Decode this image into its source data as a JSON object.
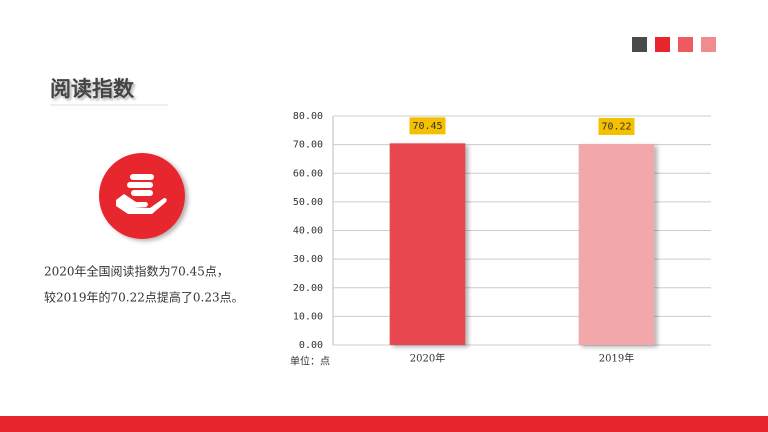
{
  "header": {
    "title": "阅读指数"
  },
  "description": [
    "2020年全国阅读指数为70.45点，",
    "较2019年的70.22点提高了0.23点。"
  ],
  "chart_data": {
    "type": "bar",
    "categories": [
      "2020年",
      "2019年"
    ],
    "values": [
      70.45,
      70.22
    ],
    "colors": [
      "#e8474f",
      "#f2a7aa"
    ],
    "label_color": "#f5c000",
    "y_label": "单位：点",
    "ylim": [
      0,
      80
    ],
    "yticks": [
      {
        "value": 0,
        "label": "0.00"
      },
      {
        "value": 10,
        "label": "10.00"
      },
      {
        "value": 20,
        "label": "20.00"
      },
      {
        "value": 30,
        "label": "30.00"
      },
      {
        "value": 40,
        "label": "40.00"
      },
      {
        "value": 50,
        "label": "50.00"
      },
      {
        "value": 60,
        "label": "60.00"
      },
      {
        "value": 70,
        "label": "70.00"
      },
      {
        "value": 80,
        "label": "80.00"
      }
    ],
    "grid": true
  }
}
